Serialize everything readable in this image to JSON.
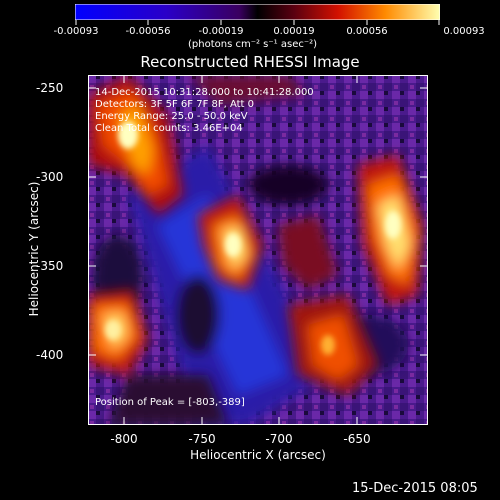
{
  "colorbar": {
    "tick_labels": [
      "-0.00093",
      "-0.00056",
      "-0.00019",
      "0.00019",
      "0.00056",
      "0.00093"
    ],
    "units": "(photons cm⁻² s⁻¹ asec⁻²)"
  },
  "title": "Reconstructed RHESSI Image",
  "info": {
    "time_range": "14-Dec-2015 10:31:28.000 to 10:41:28.000",
    "detectors": "Detectors: 3F 5F 6F 7F 8F, Att 0",
    "energy": "Energy Range: 25.0 - 50.0 keV",
    "clean": "Clean     Total counts: 3.46E+04"
  },
  "peak": "Position of Peak = [-803,-389]",
  "axes": {
    "xlabel": "Heliocentric X (arcsec)",
    "ylabel": "Heliocentric Y (arcsec)",
    "xticks": [
      "-800",
      "-750",
      "-700",
      "-650"
    ],
    "yticks": [
      "-250",
      "-300",
      "-350",
      "-400"
    ]
  },
  "footer_date": "15-Dec-2015 08:05"
}
